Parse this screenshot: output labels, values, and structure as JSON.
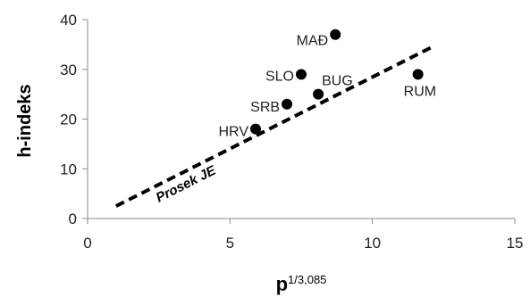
{
  "chart_data": {
    "type": "scatter",
    "title": "",
    "ylabel": "h-indeks",
    "xlabel": "p",
    "xlabel_superscript": "1/3,085",
    "xlim": [
      0,
      15
    ],
    "ylim": [
      0,
      40
    ],
    "xticks": [
      0,
      5,
      10,
      15
    ],
    "yticks": [
      0,
      10,
      20,
      30,
      40
    ],
    "grid": false,
    "points": [
      {
        "label": "MAĐ",
        "x": 8.7,
        "y": 37
      },
      {
        "label": "SLO",
        "x": 7.5,
        "y": 29
      },
      {
        "label": "BUG",
        "x": 8.1,
        "y": 25
      },
      {
        "label": "RUM",
        "x": 11.6,
        "y": 29
      },
      {
        "label": "SRB",
        "x": 7.0,
        "y": 23
      },
      {
        "label": "HRV",
        "x": 5.9,
        "y": 18
      }
    ],
    "trendline": {
      "label": "Prosek JE",
      "style": "dashed",
      "x": [
        1.0,
        12.1
      ],
      "y": [
        2.5,
        34.5
      ]
    },
    "colors": {
      "points": "#000000",
      "axes": "#888888",
      "text": "#222222"
    }
  }
}
